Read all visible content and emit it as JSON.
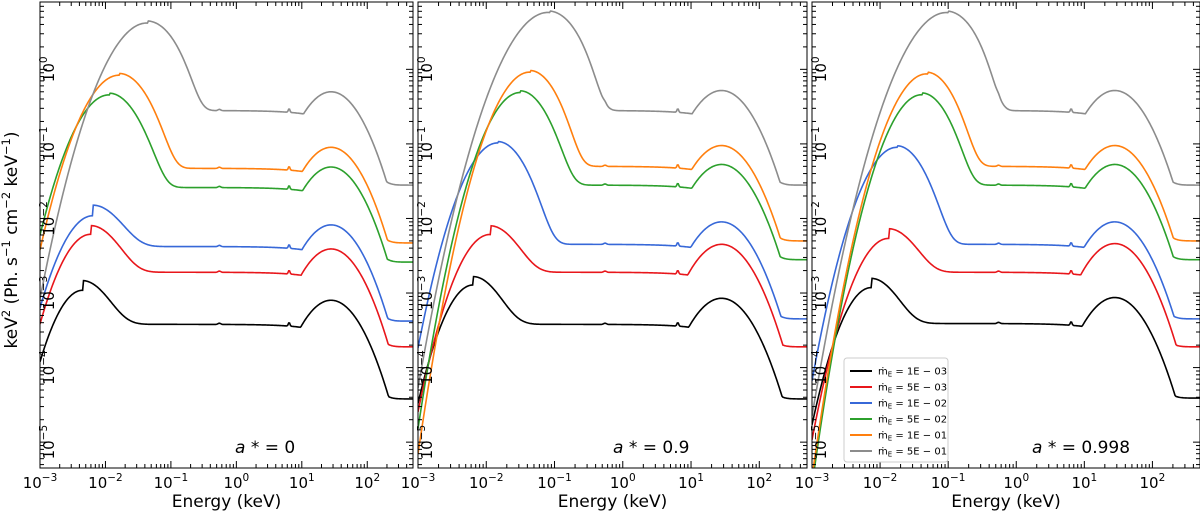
{
  "chart_data": {
    "type": "line",
    "xlabel": "Energy (keV)",
    "ylabel": "keV² (Ph. s⁻¹ cm⁻² keV⁻¹)",
    "xscale": "log",
    "yscale": "log",
    "xlim": [
      0.001,
      500
    ],
    "ylim": [
      4.5e-06,
      8
    ],
    "x_ticks": [
      {
        "value": 0.001,
        "base": "10",
        "exp": "−3"
      },
      {
        "value": 0.01,
        "base": "10",
        "exp": "−2"
      },
      {
        "value": 0.1,
        "base": "10",
        "exp": "−1"
      },
      {
        "value": 1,
        "base": "10",
        "exp": "0"
      },
      {
        "value": 10,
        "base": "10",
        "exp": "1"
      },
      {
        "value": 100,
        "base": "10",
        "exp": "2"
      }
    ],
    "y_ticks": [
      {
        "value": 1e-05,
        "base": "10",
        "exp": "−5"
      },
      {
        "value": 0.0001,
        "base": "10",
        "exp": "−4"
      },
      {
        "value": 0.001,
        "base": "10",
        "exp": "−3"
      },
      {
        "value": 0.01,
        "base": "10",
        "exp": "−2"
      },
      {
        "value": 0.1,
        "base": "10",
        "exp": "−1"
      },
      {
        "value": 1,
        "base": "10",
        "exp": "0"
      }
    ],
    "legend": {
      "location": "lower-left of right panel",
      "entries": [
        {
          "prefix": "ṁ",
          "sub": "E",
          "text": " = 1E − 03",
          "color": "#000000"
        },
        {
          "prefix": "ṁ",
          "sub": "E",
          "text": " = 5E − 03",
          "color": "#e8161b"
        },
        {
          "prefix": "ṁ",
          "sub": "E",
          "text": " = 1E − 02",
          "color": "#3768d8"
        },
        {
          "prefix": "ṁ",
          "sub": "E",
          "text": " = 5E − 02",
          "color": "#2ca02c"
        },
        {
          "prefix": "ṁ",
          "sub": "E",
          "text": " = 1E − 01",
          "color": "#ff7f0e"
        },
        {
          "prefix": "ṁ",
          "sub": "E",
          "text": " = 5E − 01",
          "color": "#8c8c8c"
        }
      ]
    },
    "panels": [
      {
        "label": "a * = 0",
        "series": [
          {
            "name": "ṁE = 1E−03",
            "color": "#000000",
            "peak_e": 0.0045,
            "peak_v": 0.0011,
            "width": 0.31,
            "cutoff": 0.035,
            "floor": 0.00038,
            "hump": 0.0008
          },
          {
            "name": "ṁE = 5E−03",
            "color": "#e8161b",
            "peak_e": 0.006,
            "peak_v": 0.0062,
            "width": 0.33,
            "cutoff": 0.045,
            "floor": 0.0019,
            "hump": 0.0039
          },
          {
            "name": "ṁE = 1E−02",
            "color": "#3768d8",
            "peak_e": 0.0065,
            "peak_v": 0.011,
            "width": 0.34,
            "cutoff": 0.05,
            "floor": 0.0042,
            "hump": 0.0082
          },
          {
            "name": "ṁE = 5E−02",
            "color": "#2ca02c",
            "peak_e": 0.0115,
            "peak_v": 0.46,
            "width": 0.36,
            "cutoff": 0.08,
            "floor": 0.026,
            "hump": 0.049
          },
          {
            "name": "ṁE = 1E−01",
            "color": "#ff7f0e",
            "peak_e": 0.0165,
            "peak_v": 0.85,
            "width": 0.37,
            "cutoff": 0.1,
            "floor": 0.047,
            "hump": 0.09
          },
          {
            "name": "ṁE = 5E−01",
            "color": "#8c8c8c",
            "peak_e": 0.045,
            "peak_v": 4.3,
            "width": 0.4,
            "cutoff": 0.22,
            "floor": 0.28,
            "hump": 0.5
          }
        ]
      },
      {
        "label": "a * = 0.9",
        "series": [
          {
            "name": "ṁE = 1E−03",
            "color": "#000000",
            "peak_e": 0.0065,
            "peak_v": 0.0013,
            "width": 0.3,
            "cutoff": 0.045,
            "floor": 0.00038,
            "hump": 0.00085
          },
          {
            "name": "ṁE = 5E−03",
            "color": "#e8161b",
            "peak_e": 0.0115,
            "peak_v": 0.0062,
            "width": 0.32,
            "cutoff": 0.07,
            "floor": 0.0019,
            "hump": 0.0045
          },
          {
            "name": "ṁE = 1E−02",
            "color": "#3768d8",
            "peak_e": 0.015,
            "peak_v": 0.105,
            "width": 0.33,
            "cutoff": 0.09,
            "floor": 0.0045,
            "hump": 0.009
          },
          {
            "name": "ṁE = 5E−02",
            "color": "#2ca02c",
            "peak_e": 0.032,
            "peak_v": 0.5,
            "width": 0.33,
            "cutoff": 0.17,
            "floor": 0.028,
            "hump": 0.053
          },
          {
            "name": "ṁE = 1E−01",
            "color": "#ff7f0e",
            "peak_e": 0.045,
            "peak_v": 0.95,
            "width": 0.34,
            "cutoff": 0.2,
            "floor": 0.05,
            "hump": 0.095
          },
          {
            "name": "ṁE = 5E−01",
            "color": "#8c8c8c",
            "peak_e": 0.085,
            "peak_v": 6.0,
            "width": 0.4,
            "cutoff": 0.38,
            "floor": 0.28,
            "hump": 0.52
          }
        ]
      },
      {
        "label": "a * = 0.998",
        "series": [
          {
            "name": "ṁE = 1E−03",
            "color": "#000000",
            "peak_e": 0.0075,
            "peak_v": 0.0012,
            "width": 0.3,
            "cutoff": 0.05,
            "floor": 0.00039,
            "hump": 0.00087
          },
          {
            "name": "ṁE = 5E−03",
            "color": "#e8161b",
            "peak_e": 0.0135,
            "peak_v": 0.0055,
            "width": 0.32,
            "cutoff": 0.08,
            "floor": 0.0019,
            "hump": 0.0046
          },
          {
            "name": "ṁE = 1E−02",
            "color": "#3768d8",
            "peak_e": 0.018,
            "peak_v": 0.092,
            "width": 0.33,
            "cutoff": 0.1,
            "floor": 0.0045,
            "hump": 0.009
          },
          {
            "name": "ṁE = 5E−02",
            "color": "#2ca02c",
            "peak_e": 0.042,
            "peak_v": 0.47,
            "width": 0.33,
            "cutoff": 0.2,
            "floor": 0.028,
            "hump": 0.053
          },
          {
            "name": "ṁE = 1E−01",
            "color": "#ff7f0e",
            "peak_e": 0.05,
            "peak_v": 0.9,
            "width": 0.34,
            "cutoff": 0.22,
            "floor": 0.05,
            "hump": 0.095
          },
          {
            "name": "ṁE = 5E−01",
            "color": "#8c8c8c",
            "peak_e": 0.1,
            "peak_v": 6.0,
            "width": 0.4,
            "cutoff": 0.42,
            "floor": 0.28,
            "hump": 0.52
          }
        ]
      }
    ]
  }
}
